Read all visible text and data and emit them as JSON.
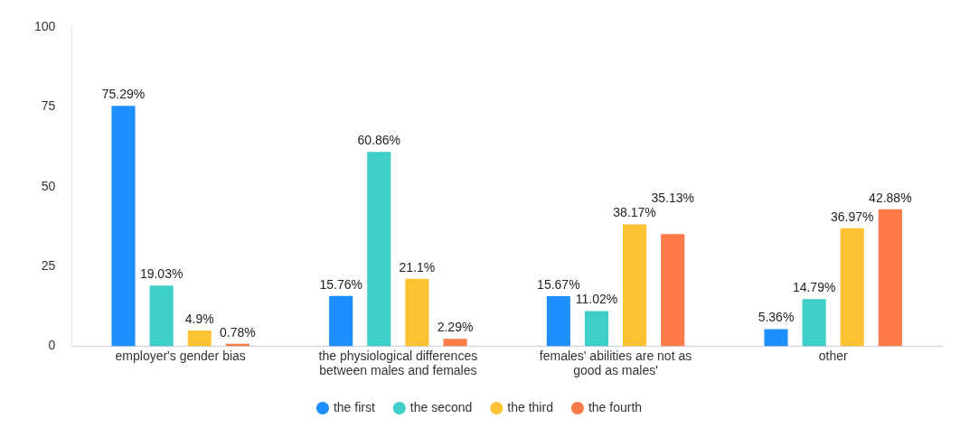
{
  "chart_data": {
    "type": "bar",
    "categories": [
      "employer's gender bias",
      "the physiological differences between males and females",
      "females' abilities are not as good as males'",
      "other"
    ],
    "series": [
      {
        "name": "the first",
        "color": "#1e8fff",
        "values": [
          75.29,
          15.76,
          15.67,
          5.36
        ],
        "value_labels": [
          "75.29%",
          "15.76%",
          "15.67%",
          "5.36%"
        ]
      },
      {
        "name": "the second",
        "color": "#3ecfca",
        "values": [
          19.03,
          60.86,
          11.02,
          14.79
        ],
        "value_labels": [
          "19.03%",
          "60.86%",
          "11.02%",
          "14.79%"
        ]
      },
      {
        "name": "the third",
        "color": "#fcc234",
        "values": [
          4.9,
          21.1,
          38.17,
          36.97
        ],
        "value_labels": [
          "4.9%",
          "21.1%",
          "38.17%",
          "36.97%"
        ]
      },
      {
        "name": "the fourth",
        "color": "#fe7a48",
        "values": [
          0.78,
          2.29,
          35.13,
          42.88
        ],
        "value_labels": [
          "0.78%",
          "2.29%",
          "35.13%",
          "42.88%"
        ]
      }
    ],
    "ylim": [
      0,
      100
    ],
    "yticks": [
      0,
      25,
      50,
      75,
      100
    ],
    "grid": false,
    "legend": "bottom"
  }
}
